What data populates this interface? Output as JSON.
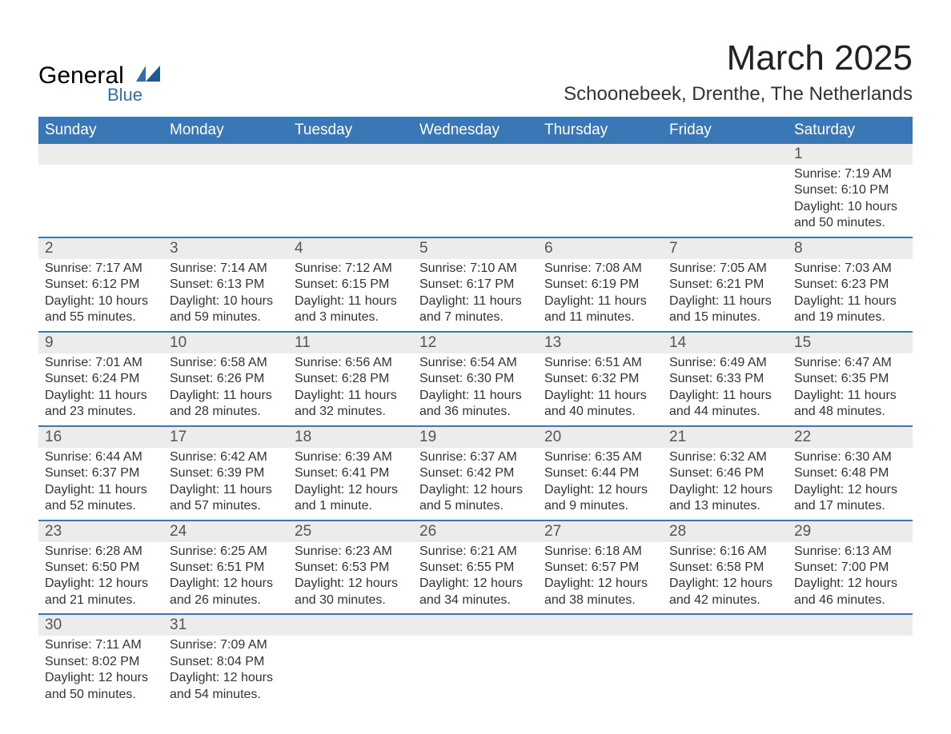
{
  "logo": {
    "word1": "General",
    "word2": "Blue",
    "word1_color": "#000000",
    "word2_color": "#2f6fb0"
  },
  "title": "March 2025",
  "subtitle": "Schoonebeek, Drenthe, The Netherlands",
  "colors": {
    "header_bg": "#3a77b6",
    "header_text": "#ffffff",
    "row_sep": "#3a77b6",
    "daynum_bg": "#ececec",
    "daynum_text": "#555555",
    "body_text": "#333333",
    "page_bg": "#ffffff"
  },
  "typography": {
    "title_fontsize": 44,
    "subtitle_fontsize": 24,
    "dayheader_fontsize": 19,
    "daynum_fontsize": 19,
    "cell_fontsize": 16
  },
  "days_of_week": [
    "Sunday",
    "Monday",
    "Tuesday",
    "Wednesday",
    "Thursday",
    "Friday",
    "Saturday"
  ],
  "weeks": [
    [
      null,
      null,
      null,
      null,
      null,
      null,
      {
        "n": "1",
        "sunrise": "Sunrise: 7:19 AM",
        "sunset": "Sunset: 6:10 PM",
        "dl1": "Daylight: 10 hours",
        "dl2": "and 50 minutes."
      }
    ],
    [
      {
        "n": "2",
        "sunrise": "Sunrise: 7:17 AM",
        "sunset": "Sunset: 6:12 PM",
        "dl1": "Daylight: 10 hours",
        "dl2": "and 55 minutes."
      },
      {
        "n": "3",
        "sunrise": "Sunrise: 7:14 AM",
        "sunset": "Sunset: 6:13 PM",
        "dl1": "Daylight: 10 hours",
        "dl2": "and 59 minutes."
      },
      {
        "n": "4",
        "sunrise": "Sunrise: 7:12 AM",
        "sunset": "Sunset: 6:15 PM",
        "dl1": "Daylight: 11 hours",
        "dl2": "and 3 minutes."
      },
      {
        "n": "5",
        "sunrise": "Sunrise: 7:10 AM",
        "sunset": "Sunset: 6:17 PM",
        "dl1": "Daylight: 11 hours",
        "dl2": "and 7 minutes."
      },
      {
        "n": "6",
        "sunrise": "Sunrise: 7:08 AM",
        "sunset": "Sunset: 6:19 PM",
        "dl1": "Daylight: 11 hours",
        "dl2": "and 11 minutes."
      },
      {
        "n": "7",
        "sunrise": "Sunrise: 7:05 AM",
        "sunset": "Sunset: 6:21 PM",
        "dl1": "Daylight: 11 hours",
        "dl2": "and 15 minutes."
      },
      {
        "n": "8",
        "sunrise": "Sunrise: 7:03 AM",
        "sunset": "Sunset: 6:23 PM",
        "dl1": "Daylight: 11 hours",
        "dl2": "and 19 minutes."
      }
    ],
    [
      {
        "n": "9",
        "sunrise": "Sunrise: 7:01 AM",
        "sunset": "Sunset: 6:24 PM",
        "dl1": "Daylight: 11 hours",
        "dl2": "and 23 minutes."
      },
      {
        "n": "10",
        "sunrise": "Sunrise: 6:58 AM",
        "sunset": "Sunset: 6:26 PM",
        "dl1": "Daylight: 11 hours",
        "dl2": "and 28 minutes."
      },
      {
        "n": "11",
        "sunrise": "Sunrise: 6:56 AM",
        "sunset": "Sunset: 6:28 PM",
        "dl1": "Daylight: 11 hours",
        "dl2": "and 32 minutes."
      },
      {
        "n": "12",
        "sunrise": "Sunrise: 6:54 AM",
        "sunset": "Sunset: 6:30 PM",
        "dl1": "Daylight: 11 hours",
        "dl2": "and 36 minutes."
      },
      {
        "n": "13",
        "sunrise": "Sunrise: 6:51 AM",
        "sunset": "Sunset: 6:32 PM",
        "dl1": "Daylight: 11 hours",
        "dl2": "and 40 minutes."
      },
      {
        "n": "14",
        "sunrise": "Sunrise: 6:49 AM",
        "sunset": "Sunset: 6:33 PM",
        "dl1": "Daylight: 11 hours",
        "dl2": "and 44 minutes."
      },
      {
        "n": "15",
        "sunrise": "Sunrise: 6:47 AM",
        "sunset": "Sunset: 6:35 PM",
        "dl1": "Daylight: 11 hours",
        "dl2": "and 48 minutes."
      }
    ],
    [
      {
        "n": "16",
        "sunrise": "Sunrise: 6:44 AM",
        "sunset": "Sunset: 6:37 PM",
        "dl1": "Daylight: 11 hours",
        "dl2": "and 52 minutes."
      },
      {
        "n": "17",
        "sunrise": "Sunrise: 6:42 AM",
        "sunset": "Sunset: 6:39 PM",
        "dl1": "Daylight: 11 hours",
        "dl2": "and 57 minutes."
      },
      {
        "n": "18",
        "sunrise": "Sunrise: 6:39 AM",
        "sunset": "Sunset: 6:41 PM",
        "dl1": "Daylight: 12 hours",
        "dl2": "and 1 minute."
      },
      {
        "n": "19",
        "sunrise": "Sunrise: 6:37 AM",
        "sunset": "Sunset: 6:42 PM",
        "dl1": "Daylight: 12 hours",
        "dl2": "and 5 minutes."
      },
      {
        "n": "20",
        "sunrise": "Sunrise: 6:35 AM",
        "sunset": "Sunset: 6:44 PM",
        "dl1": "Daylight: 12 hours",
        "dl2": "and 9 minutes."
      },
      {
        "n": "21",
        "sunrise": "Sunrise: 6:32 AM",
        "sunset": "Sunset: 6:46 PM",
        "dl1": "Daylight: 12 hours",
        "dl2": "and 13 minutes."
      },
      {
        "n": "22",
        "sunrise": "Sunrise: 6:30 AM",
        "sunset": "Sunset: 6:48 PM",
        "dl1": "Daylight: 12 hours",
        "dl2": "and 17 minutes."
      }
    ],
    [
      {
        "n": "23",
        "sunrise": "Sunrise: 6:28 AM",
        "sunset": "Sunset: 6:50 PM",
        "dl1": "Daylight: 12 hours",
        "dl2": "and 21 minutes."
      },
      {
        "n": "24",
        "sunrise": "Sunrise: 6:25 AM",
        "sunset": "Sunset: 6:51 PM",
        "dl1": "Daylight: 12 hours",
        "dl2": "and 26 minutes."
      },
      {
        "n": "25",
        "sunrise": "Sunrise: 6:23 AM",
        "sunset": "Sunset: 6:53 PM",
        "dl1": "Daylight: 12 hours",
        "dl2": "and 30 minutes."
      },
      {
        "n": "26",
        "sunrise": "Sunrise: 6:21 AM",
        "sunset": "Sunset: 6:55 PM",
        "dl1": "Daylight: 12 hours",
        "dl2": "and 34 minutes."
      },
      {
        "n": "27",
        "sunrise": "Sunrise: 6:18 AM",
        "sunset": "Sunset: 6:57 PM",
        "dl1": "Daylight: 12 hours",
        "dl2": "and 38 minutes."
      },
      {
        "n": "28",
        "sunrise": "Sunrise: 6:16 AM",
        "sunset": "Sunset: 6:58 PM",
        "dl1": "Daylight: 12 hours",
        "dl2": "and 42 minutes."
      },
      {
        "n": "29",
        "sunrise": "Sunrise: 6:13 AM",
        "sunset": "Sunset: 7:00 PM",
        "dl1": "Daylight: 12 hours",
        "dl2": "and 46 minutes."
      }
    ],
    [
      {
        "n": "30",
        "sunrise": "Sunrise: 7:11 AM",
        "sunset": "Sunset: 8:02 PM",
        "dl1": "Daylight: 12 hours",
        "dl2": "and 50 minutes."
      },
      {
        "n": "31",
        "sunrise": "Sunrise: 7:09 AM",
        "sunset": "Sunset: 8:04 PM",
        "dl1": "Daylight: 12 hours",
        "dl2": "and 54 minutes."
      },
      null,
      null,
      null,
      null,
      null
    ]
  ]
}
